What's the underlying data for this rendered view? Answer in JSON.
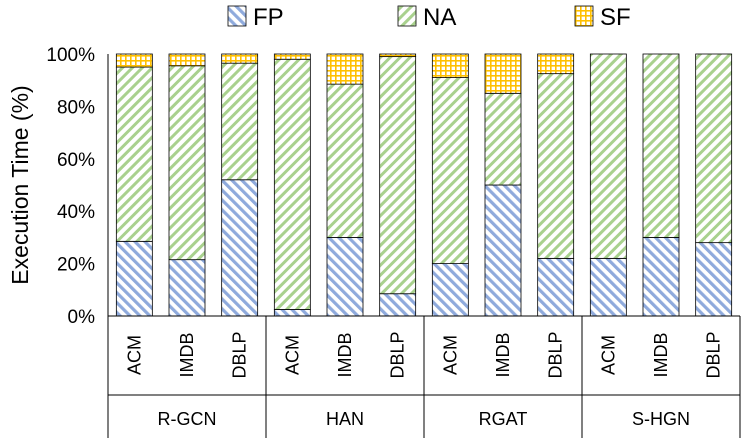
{
  "chart_data": {
    "type": "bar",
    "stacked": true,
    "title": "",
    "xlabel": "",
    "ylabel": "Execution Time (%)",
    "ylim": [
      0,
      100
    ],
    "yticks": [
      "0%",
      "20%",
      "40%",
      "60%",
      "80%",
      "100%"
    ],
    "groups": [
      {
        "name": "R-GCN",
        "categories": [
          "ACM",
          "IMDB",
          "DBLP"
        ]
      },
      {
        "name": "HAN",
        "categories": [
          "ACM",
          "IMDB",
          "DBLP"
        ]
      },
      {
        "name": "RGAT",
        "categories": [
          "ACM",
          "IMDB",
          "DBLP"
        ]
      },
      {
        "name": "S-HGN",
        "categories": [
          "ACM",
          "IMDB",
          "DBLP"
        ]
      }
    ],
    "series": [
      {
        "name": "FP",
        "color": "#8faadc",
        "pattern": "diagonal-down",
        "values": [
          28.5,
          21.5,
          52,
          2.5,
          30,
          8.5,
          20,
          50,
          22,
          22,
          30,
          28
        ]
      },
      {
        "name": "NA",
        "color": "#a9d18e",
        "pattern": "diagonal-up",
        "values": [
          66.5,
          74,
          44.5,
          95.5,
          58.5,
          90.5,
          71,
          35,
          70.5,
          78,
          70,
          72
        ]
      },
      {
        "name": "SF",
        "color": "#ffc000",
        "pattern": "grid",
        "values": [
          5,
          4.5,
          3.5,
          2,
          11.5,
          1,
          9,
          15,
          7.5,
          0,
          0,
          0
        ]
      }
    ],
    "legend": {
      "position": "top",
      "items": [
        "FP",
        "NA",
        "SF"
      ]
    },
    "grid": false
  }
}
